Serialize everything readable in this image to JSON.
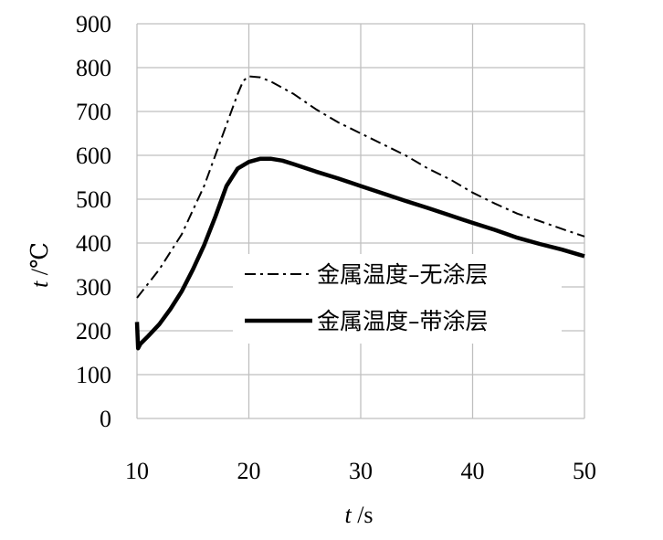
{
  "chart_data": {
    "type": "line",
    "title": "",
    "xlabel_italic": "t",
    "xlabel_unit": " /s",
    "ylabel_italic": "t",
    "ylabel_unit": " /℃",
    "xlim": [
      10,
      50
    ],
    "ylim": [
      0,
      900
    ],
    "x_ticks": [
      10,
      20,
      30,
      40,
      50
    ],
    "y_ticks": [
      0,
      100,
      200,
      300,
      400,
      500,
      600,
      700,
      800,
      900
    ],
    "grid": true,
    "legend_position": "center-right",
    "series": [
      {
        "name": "金属温度–无涂层",
        "style": "dashdot",
        "color": "#000000",
        "x": [
          10,
          12,
          14,
          16,
          17,
          18,
          19,
          19.5,
          20,
          21,
          22,
          24,
          26,
          28,
          30,
          32,
          34,
          36,
          38,
          40,
          42,
          44,
          46,
          48,
          50
        ],
        "y": [
          275,
          340,
          420,
          530,
          600,
          670,
          740,
          770,
          780,
          778,
          768,
          740,
          705,
          675,
          650,
          625,
          600,
          570,
          545,
          515,
          490,
          467,
          450,
          432,
          415
        ]
      },
      {
        "name": "金属温度–带涂层",
        "style": "solid",
        "color": "#000000",
        "x": [
          10,
          10.1,
          10.3,
          11,
          12,
          13,
          14,
          15,
          16,
          17,
          18,
          19,
          20,
          21,
          22,
          23,
          24,
          26,
          28,
          30,
          32,
          34,
          36,
          38,
          40,
          42,
          44,
          46,
          48,
          50
        ],
        "y": [
          220,
          160,
          170,
          188,
          215,
          250,
          290,
          340,
          395,
          460,
          530,
          570,
          585,
          592,
          592,
          588,
          580,
          563,
          547,
          530,
          513,
          496,
          480,
          463,
          446,
          430,
          412,
          398,
          385,
          370
        ]
      }
    ]
  }
}
